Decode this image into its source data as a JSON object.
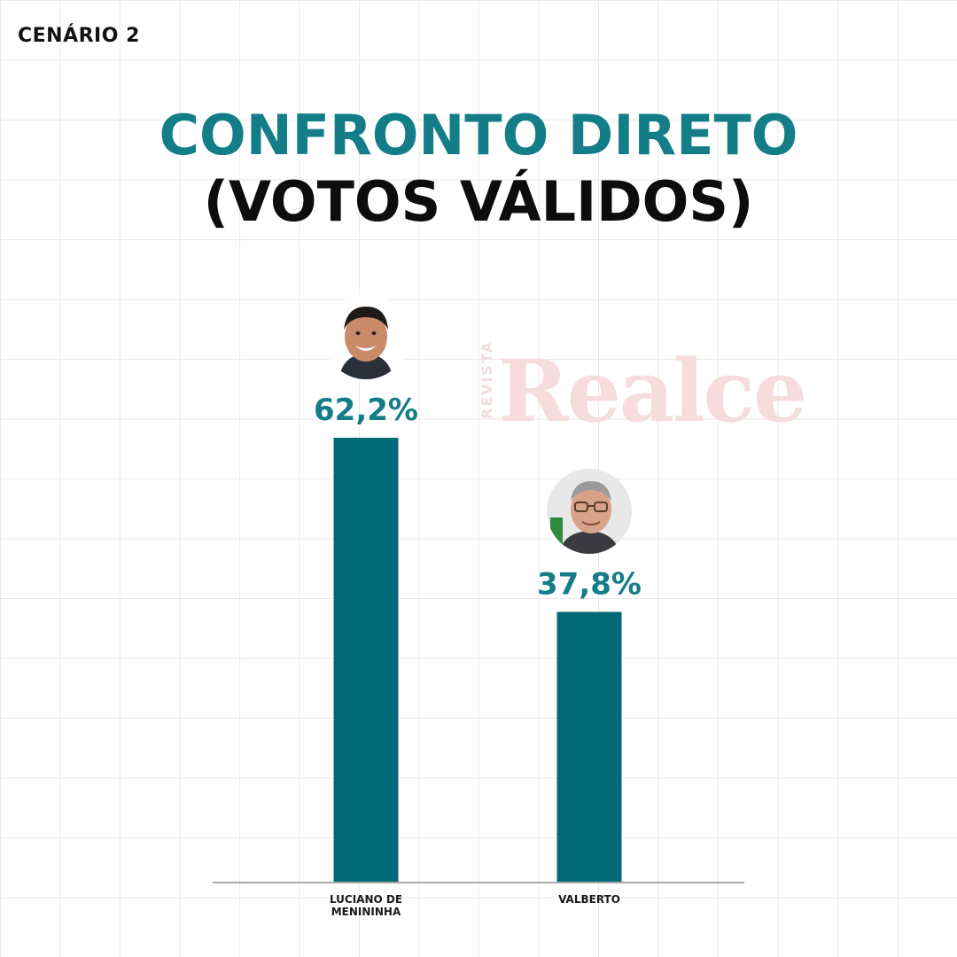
{
  "header": {
    "scenario": "CENÁRIO 2",
    "title_line1": "CONFRONTO DIRETO",
    "title_line2": "(VOTOS VÁLIDOS)"
  },
  "watermark": {
    "small": "REVISTA",
    "big": "Realce"
  },
  "colors": {
    "bar": "#006a76",
    "value_label": "#137d88",
    "title_accent": "#137d88",
    "axis": "#a8a8a8"
  },
  "chart_data": {
    "type": "bar",
    "title": "CONFRONTO DIRETO (VOTOS VÁLIDOS)",
    "categories": [
      "LUCIANO DE MENININHA",
      "VALBERTO"
    ],
    "category_lines": [
      [
        "LUCIANO DE",
        "MENININHA"
      ],
      [
        "VALBERTO"
      ]
    ],
    "values": [
      62.2,
      37.8
    ],
    "value_labels": [
      "62,2%",
      "37,8%"
    ],
    "unit": "%",
    "ylim": [
      0,
      62.2
    ],
    "xlabel": "",
    "ylabel": "",
    "grid": false,
    "legend": "none"
  }
}
